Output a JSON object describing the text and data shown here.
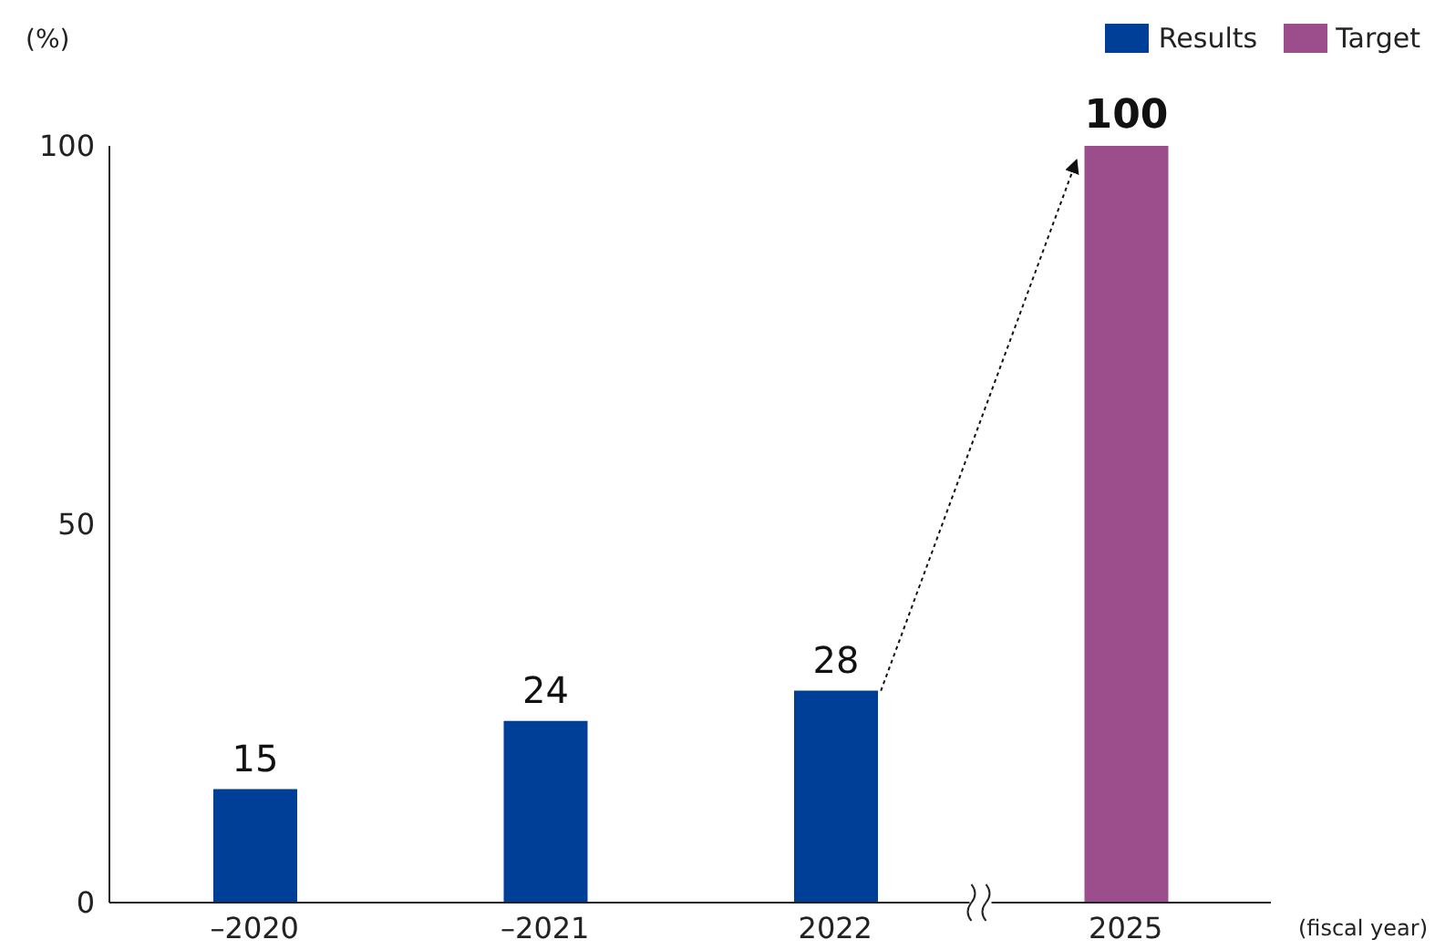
{
  "chart_data": {
    "type": "bar",
    "ylabel": "(%)",
    "xlabel": "(fiscal year)",
    "categories": [
      "–2020",
      "–2021",
      "2022",
      "2025"
    ],
    "series": [
      {
        "name": "Results",
        "color": "#003f98",
        "values": [
          15,
          24,
          28,
          null
        ]
      },
      {
        "name": "Target",
        "color": "#9b4d8c",
        "values": [
          null,
          null,
          null,
          100
        ]
      }
    ],
    "ylim": [
      0,
      100
    ],
    "yticks": [
      0,
      50,
      100
    ],
    "grid": false,
    "legend": "top right",
    "data_labels": true
  }
}
